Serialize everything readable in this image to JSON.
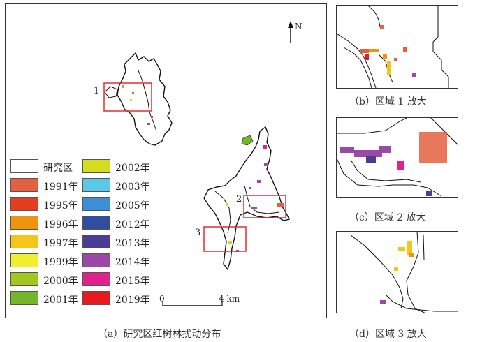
{
  "main_map": {
    "caption": "（a）研究区红树林扰动分布",
    "north_label": "N",
    "scale_start": "0",
    "scale_end": "4 km",
    "zone_labels": [
      "1",
      "2",
      "3"
    ],
    "box_color": "#e03030"
  },
  "legend": [
    {
      "label": "研究区",
      "color": "#ffffff"
    },
    {
      "label": "1991年",
      "color": "#e4603f"
    },
    {
      "label": "1995年",
      "color": "#e43d1f"
    },
    {
      "label": "1996年",
      "color": "#f0940f"
    },
    {
      "label": "1997年",
      "color": "#f4c61b"
    },
    {
      "label": "1999年",
      "color": "#f2ef33"
    },
    {
      "label": "2000年",
      "color": "#a2c81f"
    },
    {
      "label": "2001年",
      "color": "#73b728"
    },
    {
      "label": "2002年",
      "color": "#d6dd1f"
    },
    {
      "label": "2003年",
      "color": "#5ac8e8"
    },
    {
      "label": "2005年",
      "color": "#3b8fd6"
    },
    {
      "label": "2012年",
      "color": "#2f4e9e"
    },
    {
      "label": "2013年",
      "color": "#4b3c96"
    },
    {
      "label": "2014年",
      "color": "#9a4aa6"
    },
    {
      "label": "2015年",
      "color": "#e3218a"
    },
    {
      "label": "2019年",
      "color": "#e51b20"
    }
  ],
  "insets": [
    {
      "caption": "（b）区域 1 放大"
    },
    {
      "caption": "（c）区域 2 放大"
    },
    {
      "caption": "（d）区域 3 放大"
    }
  ]
}
